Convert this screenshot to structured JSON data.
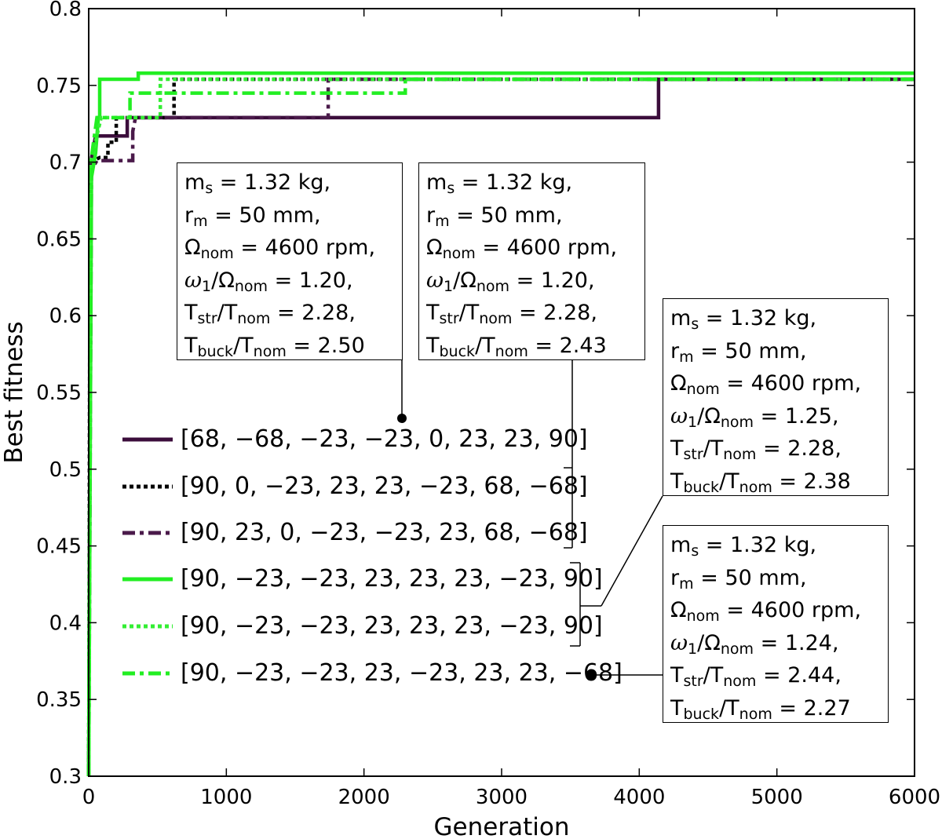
{
  "chart_data": {
    "type": "line",
    "xlabel": "Generation",
    "ylabel": "Best fitness",
    "xlim": [
      0,
      6000
    ],
    "ylim": [
      0.3,
      0.8
    ],
    "xticks": [
      "0",
      "1000",
      "2000",
      "3000",
      "4000",
      "5000",
      "6000"
    ],
    "yticks": [
      "0.3",
      "0.35",
      "0.4",
      "0.45",
      "0.5",
      "0.55",
      "0.6",
      "0.65",
      "0.7",
      "0.75",
      "0.8"
    ],
    "grid": false,
    "legend_position": "center-left",
    "series": [
      {
        "name": "[68, −68, −23, −23, 0, 23, 23, 90]",
        "color": "#3b0d3b",
        "dash": "solid",
        "steps": [
          [
            0,
            0.3
          ],
          [
            15,
            0.7
          ],
          [
            50,
            0.717
          ],
          [
            280,
            0.717
          ],
          [
            280,
            0.729
          ],
          [
            4140,
            0.729
          ],
          [
            4140,
            0.754
          ],
          [
            6000,
            0.754
          ]
        ]
      },
      {
        "name": "[90, 0, −23, 23, 23, −23, 68, −68]",
        "color": "#000000",
        "dash": "dotted",
        "steps": [
          [
            0,
            0.3
          ],
          [
            10,
            0.7
          ],
          [
            80,
            0.703
          ],
          [
            140,
            0.703
          ],
          [
            140,
            0.713
          ],
          [
            200,
            0.713
          ],
          [
            200,
            0.729
          ],
          [
            620,
            0.729
          ],
          [
            620,
            0.754
          ],
          [
            6000,
            0.754
          ]
        ]
      },
      {
        "name": "[90, 23, 0, −23, −23, 23, 68, −68]",
        "color": "#4a1a4a",
        "dash": "dashdot",
        "steps": [
          [
            0,
            0.3
          ],
          [
            20,
            0.695
          ],
          [
            60,
            0.701
          ],
          [
            320,
            0.701
          ],
          [
            320,
            0.72
          ],
          [
            340,
            0.729
          ],
          [
            1740,
            0.729
          ],
          [
            1740,
            0.754
          ],
          [
            6000,
            0.754
          ]
        ]
      },
      {
        "name": "[90, −23, −23, 23, 23, 23, −23, 90]",
        "color": "#22ee22",
        "dash": "solid",
        "steps": [
          [
            0,
            0.3
          ],
          [
            20,
            0.69
          ],
          [
            50,
            0.706
          ],
          [
            70,
            0.729
          ],
          [
            80,
            0.729
          ],
          [
            80,
            0.754
          ],
          [
            360,
            0.754
          ],
          [
            360,
            0.758
          ],
          [
            6000,
            0.758
          ]
        ]
      },
      {
        "name": "[90, −23, −23, 23, 23, 23, −23, 90]",
        "color": "#33ee33",
        "dash": "dotted",
        "steps": [
          [
            0,
            0.3
          ],
          [
            15,
            0.7
          ],
          [
            90,
            0.729
          ],
          [
            520,
            0.729
          ],
          [
            520,
            0.754
          ],
          [
            6000,
            0.754
          ]
        ]
      },
      {
        "name": "[90, −23, −23, 23, −23, 23, 23, −68]",
        "color": "#22ee22",
        "dash": "dashdot",
        "steps": [
          [
            0,
            0.3
          ],
          [
            15,
            0.7
          ],
          [
            60,
            0.729
          ],
          [
            300,
            0.729
          ],
          [
            300,
            0.745
          ],
          [
            2300,
            0.745
          ],
          [
            2300,
            0.754
          ],
          [
            6000,
            0.754
          ]
        ]
      }
    ],
    "annotations": [
      {
        "lines": [
          "m_s = 1.32 kg,",
          "r_m = 50 mm,",
          "Ω_nom = 4600 rpm,",
          "ω_1/Ω_nom = 1.20,",
          "T_str/T_nom = 2.28,",
          "T_buck/T_nom = 2.50"
        ]
      },
      {
        "lines": [
          "m_s = 1.32 kg,",
          "r_m = 50 mm,",
          "Ω_nom = 4600 rpm,",
          "ω_1/Ω_nom = 1.20,",
          "T_str/T_nom = 2.28,",
          "T_buck/T_nom = 2.43"
        ]
      },
      {
        "lines": [
          "m_s = 1.32 kg,",
          "r_m = 50 mm,",
          "Ω_nom = 4600 rpm,",
          "ω_1/Ω_nom = 1.25,",
          "T_str/T_nom = 2.28,",
          "T_buck/T_nom = 2.38"
        ]
      },
      {
        "lines": [
          "m_s = 1.32 kg,",
          "r_m = 50 mm,",
          "Ω_nom = 4600 rpm,",
          "ω_1/Ω_nom = 1.24,",
          "T_str/T_nom = 2.44,",
          "T_buck/T_nom = 2.27"
        ]
      }
    ]
  }
}
